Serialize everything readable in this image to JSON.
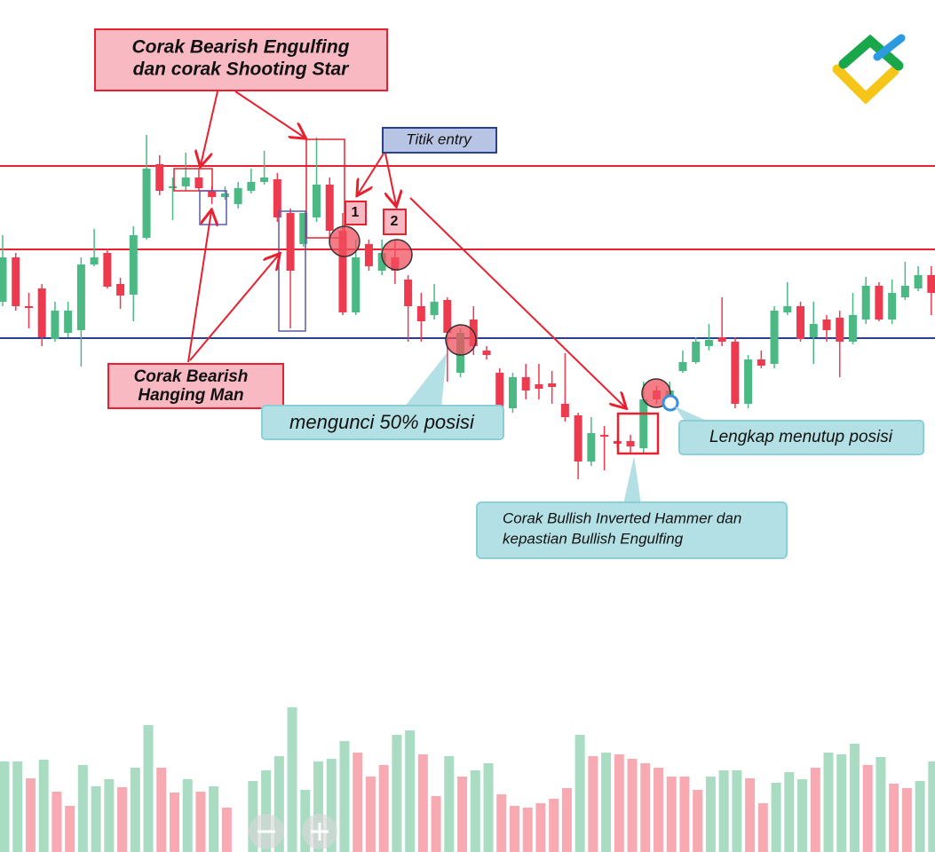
{
  "chart_data": {
    "type": "candlestick",
    "ylim": [
      0,
      600
    ],
    "up_color": "#4cb884",
    "down_color": "#ee3a4e",
    "open": [
      260,
      310,
      255,
      275,
      218,
      225,
      228,
      302,
      315,
      280,
      268,
      332,
      415,
      388,
      390,
      400,
      385,
      378,
      370,
      385,
      395,
      398,
      360,
      325,
      355,
      392,
      340,
      248,
      325,
      295,
      310,
      285,
      255,
      245,
      262,
      180,
      240,
      205,
      180,
      140,
      175,
      167,
      168,
      145,
      132,
      80,
      110,
      103,
      103,
      95,
      160,
      145,
      182,
      192,
      210,
      220,
      215,
      145,
      195,
      190,
      248,
      255,
      220,
      240,
      242,
      215,
      240,
      278,
      240,
      265,
      275,
      290
    ],
    "high": [
      335,
      315,
      270,
      280,
      260,
      260,
      310,
      342,
      320,
      287,
      345,
      448,
      425,
      400,
      428,
      410,
      390,
      390,
      395,
      410,
      430,
      405,
      365,
      360,
      445,
      400,
      360,
      330,
      330,
      330,
      330,
      290,
      270,
      280,
      265,
      230,
      255,
      210,
      185,
      180,
      190,
      190,
      182,
      202,
      135,
      130,
      120,
      105,
      110,
      170,
      165,
      170,
      205,
      220,
      235,
      265,
      220,
      200,
      205,
      255,
      282,
      260,
      260,
      245,
      250,
      270,
      288,
      282,
      285,
      305,
      300,
      300
    ],
    "low": [
      255,
      250,
      230,
      210,
      215,
      220,
      187,
      300,
      275,
      252,
      238,
      330,
      380,
      352,
      385,
      385,
      370,
      375,
      365,
      382,
      392,
      350,
      230,
      322,
      350,
      325,
      245,
      245,
      295,
      290,
      280,
      215,
      215,
      240,
      170,
      175,
      200,
      195,
      140,
      135,
      150,
      150,
      145,
      125,
      60,
      75,
      70,
      95,
      90,
      90,
      145,
      142,
      180,
      190,
      205,
      210,
      140,
      140,
      185,
      185,
      245,
      215,
      190,
      215,
      175,
      212,
      235,
      238,
      235,
      262,
      272,
      245
    ],
    "close": [
      310,
      255,
      253,
      220,
      250,
      250,
      302,
      310,
      277,
      267,
      335,
      410,
      385,
      390,
      400,
      388,
      378,
      382,
      388,
      395,
      400,
      355,
      295,
      360,
      392,
      340,
      248,
      310,
      300,
      315,
      295,
      255,
      238,
      260,
      225,
      225,
      210,
      200,
      142,
      175,
      160,
      162,
      164,
      130,
      80,
      112,
      108,
      100,
      97,
      150,
      150,
      160,
      192,
      215,
      217,
      215,
      145,
      195,
      188,
      250,
      255,
      218,
      235,
      228,
      215,
      245,
      278,
      240,
      270,
      278,
      290,
      270
    ],
    "levels": [
      {
        "value": 413,
        "color": "#e8202f"
      },
      {
        "value": 319,
        "color": "#e8202f"
      },
      {
        "value": 219,
        "color": "#2b3f8f"
      }
    ],
    "volume": {
      "ylim": [
        0,
        170
      ],
      "series": [
        {
          "color": "#a9dcc3",
          "values": [
            102,
            102,
            null,
            104,
            null,
            null,
            98,
            74,
            82,
            null,
            95,
            143,
            null,
            null,
            82,
            null,
            74,
            null,
            null,
            80,
            92,
            108,
            163,
            70,
            102,
            105,
            125,
            null,
            null,
            null,
            132,
            137,
            null,
            null,
            108,
            null,
            92,
            100,
            null,
            null,
            null,
            null,
            null,
            null,
            132,
            null,
            112,
            null,
            null,
            null,
            null,
            null,
            null,
            null,
            85,
            92,
            92,
            null,
            null,
            78,
            90,
            82,
            null,
            112,
            110,
            122,
            null,
            107,
            null,
            null,
            80,
            102
          ]
        },
        {
          "color": "#f7aab2",
          "values": [
            null,
            null,
            83,
            null,
            68,
            52,
            null,
            null,
            null,
            73,
            null,
            null,
            95,
            67,
            null,
            68,
            null,
            50,
            null,
            null,
            null,
            null,
            null,
            null,
            null,
            null,
            null,
            112,
            85,
            98,
            null,
            null,
            110,
            63,
            null,
            85,
            null,
            null,
            65,
            52,
            50,
            55,
            60,
            72,
            null,
            108,
            null,
            110,
            105,
            100,
            95,
            85,
            85,
            70,
            null,
            null,
            null,
            83,
            55,
            null,
            null,
            null,
            95,
            null,
            null,
            null,
            98,
            null,
            77,
            72,
            null,
            null
          ]
        }
      ]
    },
    "annotations": {
      "engulfing": [
        "Corak Bearish Engulfing",
        "dan corak Shooting Star"
      ],
      "entry": "Titik entry",
      "entry_1": "1",
      "entry_2": "2",
      "hanging_man": [
        "Corak Bearish",
        "Hanging Man"
      ],
      "lock": "mengunci 50% posisi",
      "close_all": "Lengkap menutup posisi",
      "bullish": [
        "Corak Bullish Inverted Hammer dan",
        "kepastian Bullish Engulfing"
      ]
    }
  }
}
